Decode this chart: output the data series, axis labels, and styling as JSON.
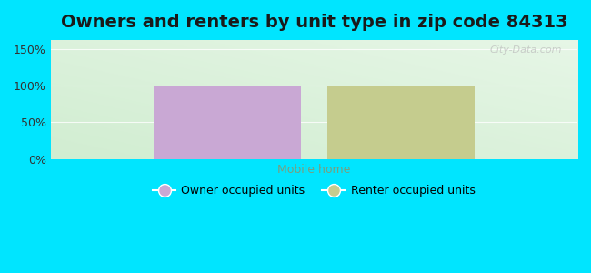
{
  "title": "Owners and renters by unit type in zip code 84313",
  "title_fontsize": 14,
  "categories": [
    "Mobile home"
  ],
  "owner_values": [
    100
  ],
  "renter_values": [
    100
  ],
  "owner_color": "#c9a8d4",
  "renter_color": "#c5cc8e",
  "owner_label": "Owner occupied units",
  "renter_label": "Renter occupied units",
  "xlabel_color": "#7a9e7e",
  "ylim": [
    0,
    162
  ],
  "yticks": [
    0,
    50,
    100,
    150
  ],
  "ytick_labels": [
    "0%",
    "50%",
    "100%",
    "150%"
  ],
  "background_outer": "#00e5ff",
  "watermark": "City-Data.com",
  "bar_width": 0.28,
  "bar_gap": 0.05
}
